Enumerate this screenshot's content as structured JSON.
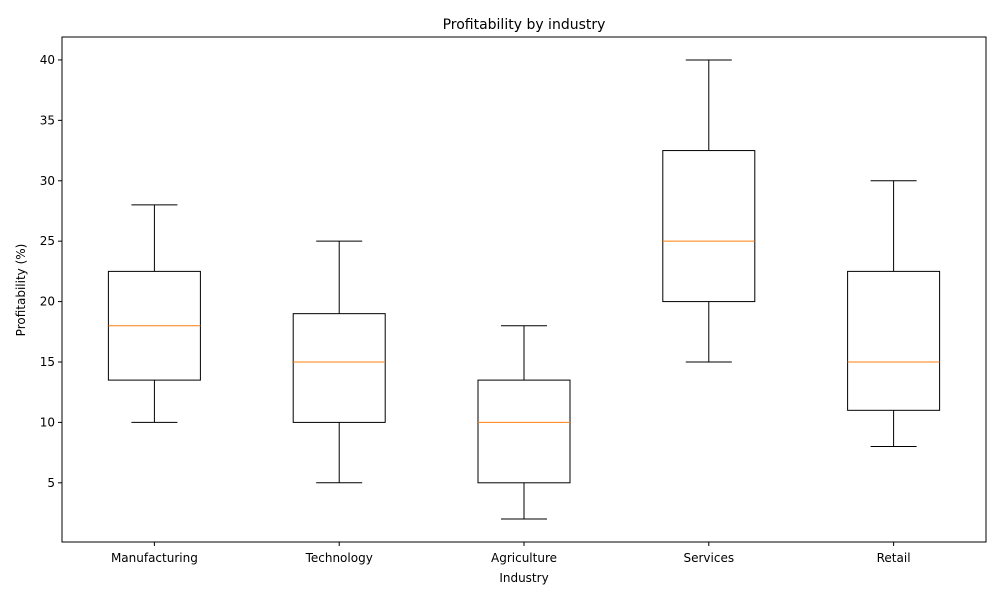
{
  "chart_data": {
    "type": "boxplot",
    "title": "Profitability by industry",
    "xlabel": "Industry",
    "ylabel": "Profitability (%)",
    "ylim": [
      0.1,
      41.9
    ],
    "yticks": [
      5,
      10,
      15,
      20,
      25,
      30,
      35,
      40
    ],
    "grid": false,
    "colors": {
      "box": "#000000",
      "median": "#ff7f0e",
      "background": "#ffffff"
    },
    "categories": [
      "Manufacturing",
      "Technology",
      "Agriculture",
      "Services",
      "Retail"
    ],
    "boxes": [
      {
        "category": "Manufacturing",
        "whisker_low": 10,
        "q1": 13.5,
        "median": 18,
        "q3": 22.5,
        "whisker_high": 28
      },
      {
        "category": "Technology",
        "whisker_low": 5,
        "q1": 10,
        "median": 15,
        "q3": 19,
        "whisker_high": 25
      },
      {
        "category": "Agriculture",
        "whisker_low": 2,
        "q1": 5,
        "median": 10,
        "q3": 13.5,
        "whisker_high": 18
      },
      {
        "category": "Services",
        "whisker_low": 15,
        "q1": 20,
        "median": 25,
        "q3": 32.5,
        "whisker_high": 40
      },
      {
        "category": "Retail",
        "whisker_low": 8,
        "q1": 11,
        "median": 15,
        "q3": 22.5,
        "whisker_high": 30
      }
    ]
  }
}
